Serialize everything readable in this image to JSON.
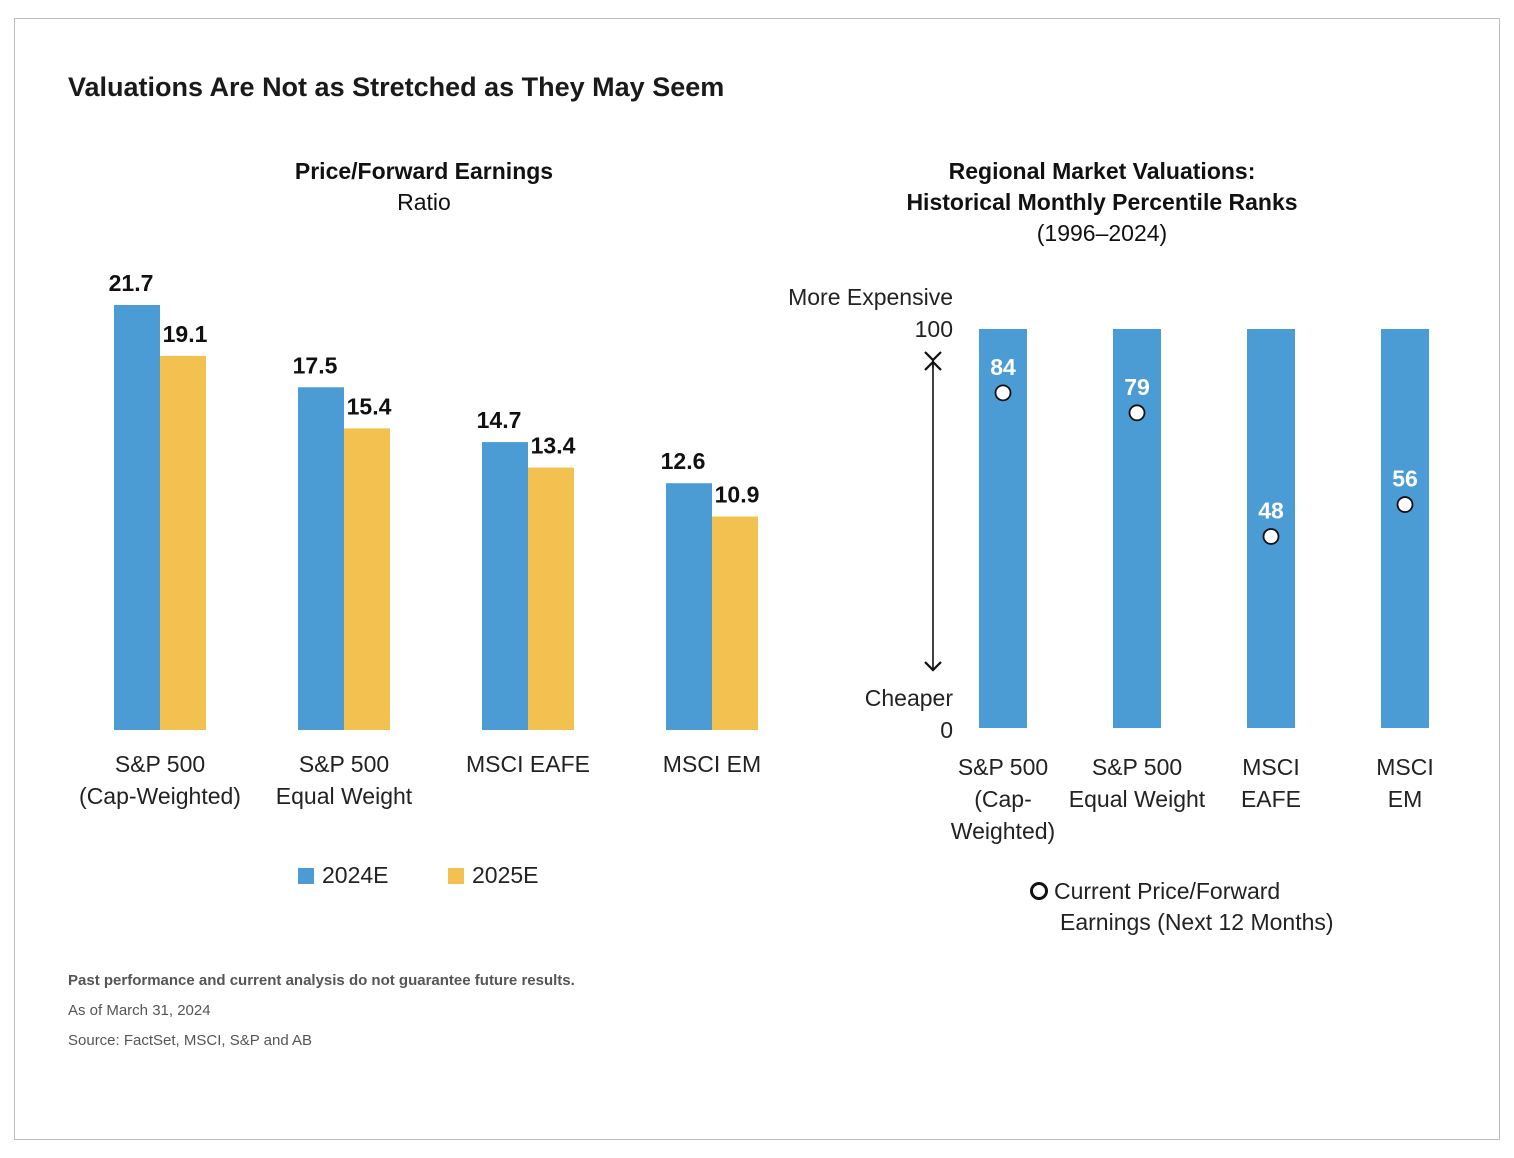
{
  "title": "Valuations Are Not as Stretched as They May Seem",
  "left_chart": {
    "title": "Price/Forward Earnings",
    "subtitle": "Ratio"
  },
  "right_chart": {
    "title_line1": "Regional Market Valuations:",
    "title_line2": "Historical Monthly Percentile Ranks",
    "subtitle": "(1996–2024)",
    "top_axis_label": "More Expensive",
    "top_value": "100",
    "bottom_axis_label": "Cheaper",
    "bottom_value": "0",
    "marker_legend_line1": "Current Price/Forward",
    "marker_legend_line2": "Earnings (Next 12 Months)"
  },
  "legend": {
    "series1": "2024E",
    "series2": "2025E"
  },
  "notes": {
    "disclaimer": "Past performance and current analysis do not guarantee future results.",
    "as_of": "As of March 31, 2024",
    "source": "Source: FactSet, MSCI, S&P and AB"
  },
  "colors": {
    "blue": "#4B9BD4",
    "yellow": "#F3C14F"
  },
  "chart_data": [
    {
      "type": "bar",
      "title": "Price/Forward Earnings",
      "subtitle": "Ratio",
      "categories": [
        [
          "S&P 500",
          "(Cap-Weighted)"
        ],
        [
          "S&P 500",
          "Equal Weight"
        ],
        [
          "MSCI EAFE"
        ],
        [
          "MSCI EM"
        ]
      ],
      "series": [
        {
          "name": "2024E",
          "values": [
            21.7,
            17.5,
            14.7,
            12.6
          ],
          "labels": [
            "21.7",
            "17.5",
            "14.7",
            "12.6"
          ],
          "color": "#4B9BD4"
        },
        {
          "name": "2025E",
          "values": [
            19.1,
            15.4,
            13.4,
            10.9
          ],
          "labels": [
            "19.1",
            "15.4",
            "13.4",
            "10.9"
          ],
          "color": "#F3C14F"
        }
      ],
      "ylim": [
        0,
        21.7
      ],
      "grid": false,
      "legend": "bottom"
    },
    {
      "type": "scatter",
      "title": "Regional Market Valuations: Historical Monthly Percentile Ranks",
      "subtitle": "(1996–2024)",
      "categories": [
        [
          "S&P 500",
          "(Cap-",
          "Weighted)"
        ],
        [
          "S&P 500",
          "Equal Weight"
        ],
        [
          "MSCI",
          "EAFE"
        ],
        [
          "MSCI",
          "EM"
        ]
      ],
      "values": [
        84,
        79,
        48,
        56
      ],
      "labels": [
        "84",
        "79",
        "48",
        "56"
      ],
      "ylim": [
        0,
        100
      ],
      "range_bars": [
        [
          0,
          100
        ],
        [
          0,
          100
        ],
        [
          0,
          100
        ],
        [
          0,
          100
        ]
      ],
      "grid": false
    }
  ]
}
